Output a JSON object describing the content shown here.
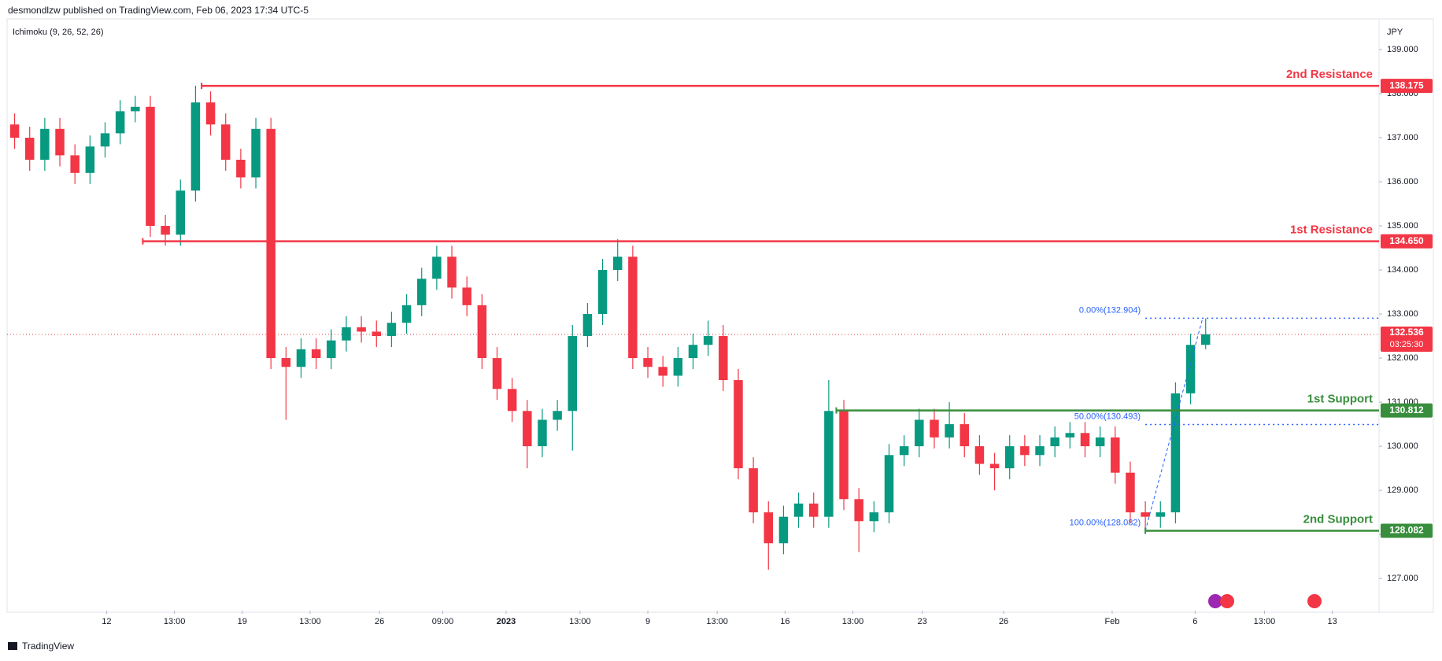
{
  "header": {
    "byline": "desmondlzw published on TradingView.com, Feb 06, 2023 17:34 UTC-5",
    "brand": "TradingView"
  },
  "chart_data": {
    "type": "candlestick",
    "indicator": "Ichimoku (9, 26, 52, 26)",
    "currency": "JPY",
    "up_color": "#089981",
    "down_color": "#f23645",
    "open": [
      137.3,
      137.0,
      136.5,
      137.2,
      136.6,
      136.2,
      136.8,
      137.1,
      137.6,
      137.7,
      135.0,
      134.8,
      135.8,
      137.8,
      137.3,
      136.5,
      136.1,
      137.2,
      132.0,
      131.8,
      132.2,
      132.0,
      132.4,
      132.7,
      132.6,
      132.5,
      132.8,
      133.2,
      133.8,
      134.3,
      133.6,
      133.2,
      132.0,
      131.3,
      130.8,
      130.0,
      130.6,
      130.8,
      132.5,
      133.0,
      134.0,
      134.3,
      132.0,
      131.8,
      131.6,
      132.0,
      132.3,
      132.5,
      131.5,
      129.5,
      128.5,
      127.8,
      128.4,
      128.7,
      128.4,
      130.8,
      128.8,
      128.3,
      128.5,
      129.8,
      130.0,
      130.6,
      130.2,
      130.5,
      130.0,
      129.6,
      129.5,
      130.0,
      129.8,
      130.0,
      130.2,
      130.3,
      130.0,
      130.2,
      129.4,
      128.5,
      128.4,
      128.5,
      131.2,
      132.3
    ],
    "high": [
      137.55,
      137.25,
      137.45,
      137.45,
      136.85,
      137.05,
      137.35,
      137.85,
      137.95,
      137.95,
      135.25,
      136.05,
      138.18,
      138.05,
      137.55,
      136.75,
      137.45,
      137.45,
      132.25,
      132.45,
      132.45,
      132.65,
      132.95,
      132.95,
      132.85,
      133.05,
      133.45,
      134.05,
      134.55,
      134.55,
      133.85,
      133.45,
      132.25,
      131.55,
      131.05,
      130.85,
      131.05,
      132.75,
      133.25,
      134.25,
      134.7,
      134.55,
      132.25,
      132.05,
      132.25,
      132.55,
      132.85,
      132.75,
      131.75,
      129.75,
      128.75,
      128.65,
      128.95,
      128.95,
      131.5,
      131.05,
      129.05,
      128.75,
      130.05,
      130.25,
      130.85,
      130.85,
      131.0,
      130.75,
      130.25,
      129.85,
      130.25,
      130.25,
      130.25,
      130.45,
      130.55,
      130.55,
      130.45,
      130.45,
      129.65,
      128.75,
      128.75,
      131.45,
      132.55,
      132.9
    ],
    "low": [
      136.75,
      136.25,
      136.25,
      136.35,
      135.95,
      135.95,
      136.55,
      136.85,
      137.35,
      134.75,
      134.55,
      134.55,
      135.55,
      137.05,
      136.25,
      135.85,
      135.85,
      131.75,
      130.6,
      131.55,
      131.75,
      131.75,
      132.15,
      132.35,
      132.25,
      132.25,
      132.55,
      132.95,
      133.55,
      133.35,
      132.95,
      131.75,
      131.05,
      130.55,
      129.5,
      129.75,
      130.35,
      129.9,
      132.25,
      132.75,
      133.75,
      131.75,
      131.55,
      131.35,
      131.35,
      131.75,
      132.05,
      131.25,
      129.25,
      128.25,
      127.2,
      127.55,
      128.15,
      128.15,
      128.15,
      128.55,
      127.6,
      128.05,
      128.25,
      129.55,
      129.75,
      129.95,
      129.95,
      129.75,
      129.35,
      129.0,
      129.25,
      129.55,
      129.55,
      129.75,
      129.95,
      129.75,
      129.75,
      129.15,
      128.25,
      128.08,
      128.15,
      128.25,
      130.95,
      132.2
    ],
    "close": [
      137.0,
      136.5,
      137.2,
      136.6,
      136.2,
      136.8,
      137.1,
      137.6,
      137.7,
      135.0,
      134.8,
      135.8,
      137.8,
      137.3,
      136.5,
      136.1,
      137.2,
      132.0,
      131.8,
      132.2,
      132.0,
      132.4,
      132.7,
      132.6,
      132.5,
      132.8,
      133.2,
      133.8,
      134.3,
      133.6,
      133.2,
      132.0,
      131.3,
      130.8,
      130.0,
      130.6,
      130.8,
      132.5,
      133.0,
      134.0,
      134.3,
      132.0,
      131.8,
      131.6,
      132.0,
      132.3,
      132.5,
      131.5,
      129.5,
      128.5,
      127.8,
      128.4,
      128.7,
      128.4,
      130.8,
      128.8,
      128.3,
      128.5,
      129.8,
      130.0,
      130.6,
      130.2,
      130.5,
      130.0,
      129.6,
      129.5,
      130.0,
      129.8,
      130.0,
      130.2,
      130.3,
      130.0,
      130.2,
      129.4,
      128.5,
      128.4,
      128.5,
      131.2,
      132.3,
      132.54
    ],
    "xlim": [
      0,
      91
    ],
    "ylim": [
      126.27,
      139.66
    ],
    "yticks": [
      {
        "value": 127,
        "label": "127.000"
      },
      {
        "value": 128,
        "label": "128.000"
      },
      {
        "value": 129,
        "label": "129.000"
      },
      {
        "value": 130,
        "label": "130.000"
      },
      {
        "value": 131,
        "label": "131.000"
      },
      {
        "value": 132,
        "label": "132.000"
      },
      {
        "value": 133,
        "label": "133.000"
      },
      {
        "value": 134,
        "label": "134.000"
      },
      {
        "value": 135,
        "label": "135.000"
      },
      {
        "value": 136,
        "label": "136.000"
      },
      {
        "value": 137,
        "label": "137.000"
      },
      {
        "value": 138,
        "label": "138.000"
      },
      {
        "value": 139,
        "label": "139.000"
      }
    ],
    "xticks": [
      {
        "value": 6.6,
        "label": "12"
      },
      {
        "value": 11.1,
        "label": "13:00"
      },
      {
        "value": 15.6,
        "label": "19"
      },
      {
        "value": 20.1,
        "label": "13:00"
      },
      {
        "value": 24.7,
        "label": "26"
      },
      {
        "value": 28.9,
        "label": "09:00"
      },
      {
        "value": 33.1,
        "label": "2023"
      },
      {
        "value": 38.0,
        "label": "13:00"
      },
      {
        "value": 42.5,
        "label": "9"
      },
      {
        "value": 47.1,
        "label": "13:00"
      },
      {
        "value": 51.6,
        "label": "16"
      },
      {
        "value": 56.1,
        "label": "13:00"
      },
      {
        "value": 60.7,
        "label": "23"
      },
      {
        "value": 66.1,
        "label": "26"
      },
      {
        "value": 73.3,
        "label": "Feb"
      },
      {
        "value": 78.8,
        "label": "6"
      },
      {
        "value": 83.4,
        "label": "13:00"
      },
      {
        "value": 87.9,
        "label": "13"
      }
    ],
    "levels": [
      {
        "name": "2nd Resistance",
        "value": 138.175,
        "value_label": "138.175",
        "from": 12.9,
        "color": "#f23645"
      },
      {
        "name": "1st Resistance",
        "value": 134.65,
        "value_label": "134.650",
        "from": 9.0,
        "color": "#f23645"
      },
      {
        "name": "1st Support",
        "value": 130.812,
        "value_label": "130.812",
        "from": 55.0,
        "color": "#388e3c"
      },
      {
        "name": "2nd Support",
        "value": 128.082,
        "value_label": "128.082",
        "from": 75.5,
        "color": "#388e3c"
      }
    ],
    "fibonacci": {
      "from": 75.5,
      "to": 79.3,
      "color": "#2962ff",
      "levels": [
        {
          "label": "0.00%(132.904)",
          "value": 132.904
        },
        {
          "label": "50.00%(130.493)",
          "value": 130.493
        },
        {
          "label": "100.00%(128.082)",
          "value": 128.082
        }
      ]
    },
    "last_price": {
      "value": 132.536,
      "label": "132.536",
      "countdown": "03:25:30",
      "color": "#f23645"
    }
  }
}
